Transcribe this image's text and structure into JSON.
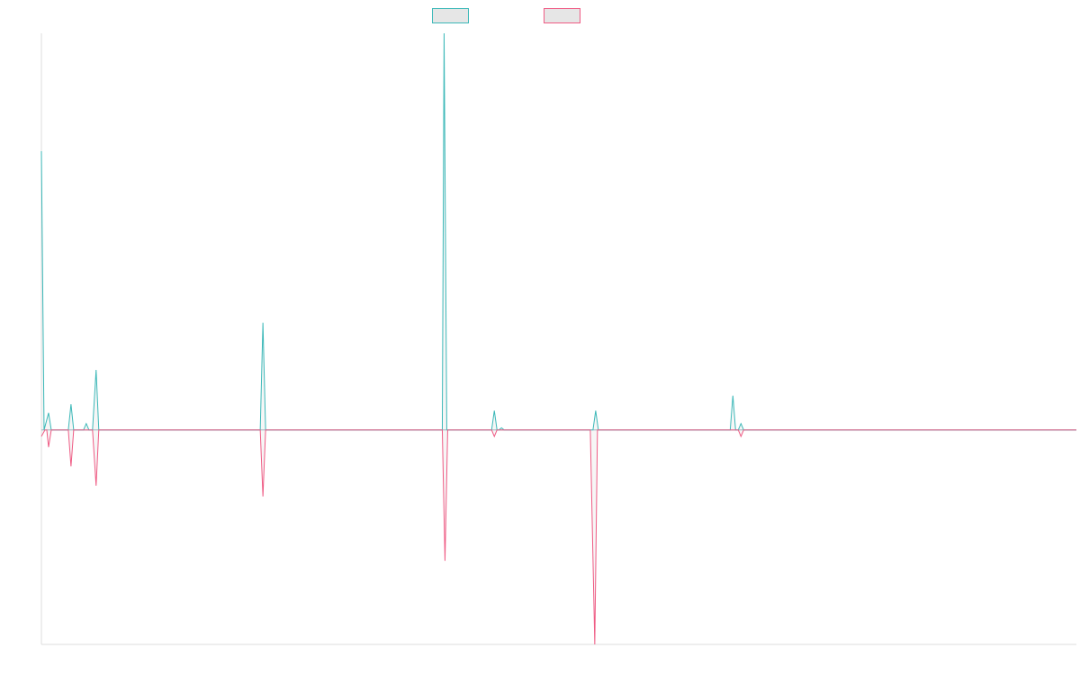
{
  "chart_data": {
    "type": "line",
    "title": "",
    "xlabel": "",
    "ylabel": "",
    "grid": false,
    "legend_position": "top-center",
    "xlim": [
      0,
      1154
    ],
    "ylim": [
      -1,
      1.85
    ],
    "series": [
      {
        "color": "#3bb8b8",
        "fill": "#e6e6e6",
        "direction": "up",
        "points": [
          [
            0,
            1.3
          ],
          [
            3,
            0
          ],
          [
            8,
            0.08
          ],
          [
            11,
            0
          ],
          [
            30,
            0
          ],
          [
            33,
            0.12
          ],
          [
            36,
            0
          ],
          [
            47,
            0
          ],
          [
            50,
            0.03
          ],
          [
            53,
            0
          ],
          [
            57,
            0
          ],
          [
            61,
            0.28
          ],
          [
            64,
            0
          ],
          [
            244,
            0
          ],
          [
            247,
            0.5
          ],
          [
            250,
            0
          ],
          [
            447,
            0
          ],
          [
            449,
            1.85
          ],
          [
            452,
            0
          ],
          [
            502,
            0
          ],
          [
            505,
            0.09
          ],
          [
            508,
            0
          ],
          [
            510,
            0
          ],
          [
            513,
            0.01
          ],
          [
            516,
            0
          ],
          [
            615,
            0
          ],
          [
            618,
            0.09
          ],
          [
            621,
            0
          ],
          [
            768,
            0
          ],
          [
            771,
            0.16
          ],
          [
            774,
            0
          ],
          [
            777,
            0
          ],
          [
            780,
            0.03
          ],
          [
            783,
            0
          ],
          [
            1154,
            0
          ]
        ]
      },
      {
        "color": "#ef5b84",
        "fill": "#e6e6e6",
        "direction": "down",
        "points": [
          [
            0,
            -0.03
          ],
          [
            4,
            0
          ],
          [
            6,
            0
          ],
          [
            8,
            -0.08
          ],
          [
            11,
            0
          ],
          [
            30,
            0
          ],
          [
            33,
            -0.17
          ],
          [
            36,
            0
          ],
          [
            57,
            0
          ],
          [
            61,
            -0.26
          ],
          [
            64,
            0
          ],
          [
            244,
            0
          ],
          [
            247,
            -0.31
          ],
          [
            250,
            0
          ],
          [
            447,
            0
          ],
          [
            450,
            -0.61
          ],
          [
            453,
            0
          ],
          [
            502,
            0
          ],
          [
            505,
            -0.03
          ],
          [
            508,
            0
          ],
          [
            612,
            0
          ],
          [
            617,
            -1
          ],
          [
            620,
            0
          ],
          [
            777,
            0
          ],
          [
            780,
            -0.03
          ],
          [
            783,
            0
          ],
          [
            1154,
            0
          ]
        ]
      }
    ]
  }
}
